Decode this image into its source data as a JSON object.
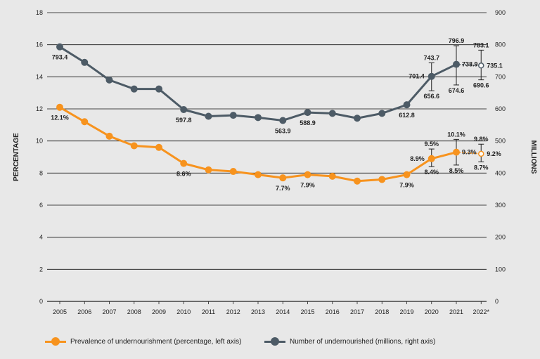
{
  "chart_data": {
    "type": "line",
    "categories": [
      "2005",
      "2006",
      "2007",
      "2008",
      "2009",
      "2010",
      "2011",
      "2012",
      "2013",
      "2014",
      "2015",
      "2016",
      "2017",
      "2018",
      "2019",
      "2020",
      "2021",
      "2022*"
    ],
    "left_axis": {
      "label": "PERCENTAGE",
      "ylim": [
        0,
        18
      ],
      "ticks": [
        "0",
        "2",
        "4",
        "6",
        "8",
        "10",
        "12",
        "14",
        "16",
        "18"
      ]
    },
    "right_axis": {
      "label": "MILLIONS",
      "ylim": [
        0,
        900
      ],
      "ticks": [
        "0",
        "100",
        "200",
        "300",
        "400",
        "500",
        "600",
        "700",
        "800",
        "900"
      ]
    },
    "series": [
      {
        "name": "Prevalence of undernourishment (percentage, left axis)",
        "axis": "left",
        "color": "#f7931e",
        "values": [
          12.1,
          11.2,
          10.3,
          9.7,
          9.6,
          8.6,
          8.2,
          8.1,
          7.9,
          7.7,
          7.9,
          7.8,
          7.5,
          7.6,
          7.9,
          8.9,
          9.3,
          9.2
        ],
        "projected_last": true,
        "error_bars": [
          {
            "index": 15,
            "low": 8.4,
            "high": 9.5
          },
          {
            "index": 16,
            "low": 8.5,
            "high": 10.1
          },
          {
            "index": 17,
            "low": 8.7,
            "high": 9.8
          }
        ]
      },
      {
        "name": "Number of undernourished (millions, right axis)",
        "axis": "right",
        "color": "#4d5b66",
        "values": [
          793.4,
          745,
          690,
          662,
          662,
          597.8,
          577,
          580,
          573,
          563.9,
          588.9,
          586,
          571,
          586,
          612.8,
          701.4,
          738.9,
          735.1
        ],
        "projected_last": true,
        "error_bars": [
          {
            "index": 15,
            "low": 656.6,
            "high": 743.7
          },
          {
            "index": 16,
            "low": 674.6,
            "high": 796.9
          },
          {
            "index": 17,
            "low": 690.6,
            "high": 783.1
          }
        ]
      }
    ],
    "data_labels": [
      {
        "series": 0,
        "index": 0,
        "text": "12.1%",
        "pos": "below"
      },
      {
        "series": 0,
        "index": 5,
        "text": "8.6%",
        "pos": "below"
      },
      {
        "series": 0,
        "index": 9,
        "text": "7.7%",
        "pos": "below"
      },
      {
        "series": 0,
        "index": 10,
        "text": "7.9%",
        "pos": "below"
      },
      {
        "series": 0,
        "index": 14,
        "text": "7.9%",
        "pos": "below"
      },
      {
        "series": 0,
        "index": 15,
        "text": "8.9%",
        "pos": "left"
      },
      {
        "series": 0,
        "index": 15,
        "text": "9.5%",
        "pos": "high"
      },
      {
        "series": 0,
        "index": 15,
        "text": "8.4%",
        "pos": "low"
      },
      {
        "series": 0,
        "index": 16,
        "text": "9.3%",
        "pos": "right"
      },
      {
        "series": 0,
        "index": 16,
        "text": "10.1%",
        "pos": "high"
      },
      {
        "series": 0,
        "index": 16,
        "text": "8.5%",
        "pos": "low"
      },
      {
        "series": 0,
        "index": 17,
        "text": "9.2%",
        "pos": "right"
      },
      {
        "series": 0,
        "index": 17,
        "text": "9.8%",
        "pos": "high"
      },
      {
        "series": 0,
        "index": 17,
        "text": "8.7%",
        "pos": "low"
      },
      {
        "series": 1,
        "index": 0,
        "text": "793.4",
        "pos": "below"
      },
      {
        "series": 1,
        "index": 5,
        "text": "597.8",
        "pos": "below"
      },
      {
        "series": 1,
        "index": 9,
        "text": "563.9",
        "pos": "below"
      },
      {
        "series": 1,
        "index": 10,
        "text": "588.9",
        "pos": "below"
      },
      {
        "series": 1,
        "index": 14,
        "text": "612.8",
        "pos": "below"
      },
      {
        "series": 1,
        "index": 15,
        "text": "701.4",
        "pos": "left"
      },
      {
        "series": 1,
        "index": 15,
        "text": "743.7",
        "pos": "high"
      },
      {
        "series": 1,
        "index": 15,
        "text": "656.6",
        "pos": "low"
      },
      {
        "series": 1,
        "index": 16,
        "text": "738.9",
        "pos": "right"
      },
      {
        "series": 1,
        "index": 16,
        "text": "796.9",
        "pos": "high"
      },
      {
        "series": 1,
        "index": 16,
        "text": "674.6",
        "pos": "low"
      },
      {
        "series": 1,
        "index": 17,
        "text": "735.1",
        "pos": "right"
      },
      {
        "series": 1,
        "index": 17,
        "text": "783.1",
        "pos": "high"
      },
      {
        "series": 1,
        "index": 17,
        "text": "690.6",
        "pos": "low"
      }
    ],
    "grid": true,
    "legend_position": "bottom-left"
  },
  "legend": {
    "prevalence_label": "Prevalence of undernourishment (percentage, left axis)",
    "number_label": "Number of undernourished (millions, right axis)"
  },
  "colors": {
    "background": "#e8e8e8",
    "orange": "#f7931e",
    "slate": "#4d5b66"
  }
}
